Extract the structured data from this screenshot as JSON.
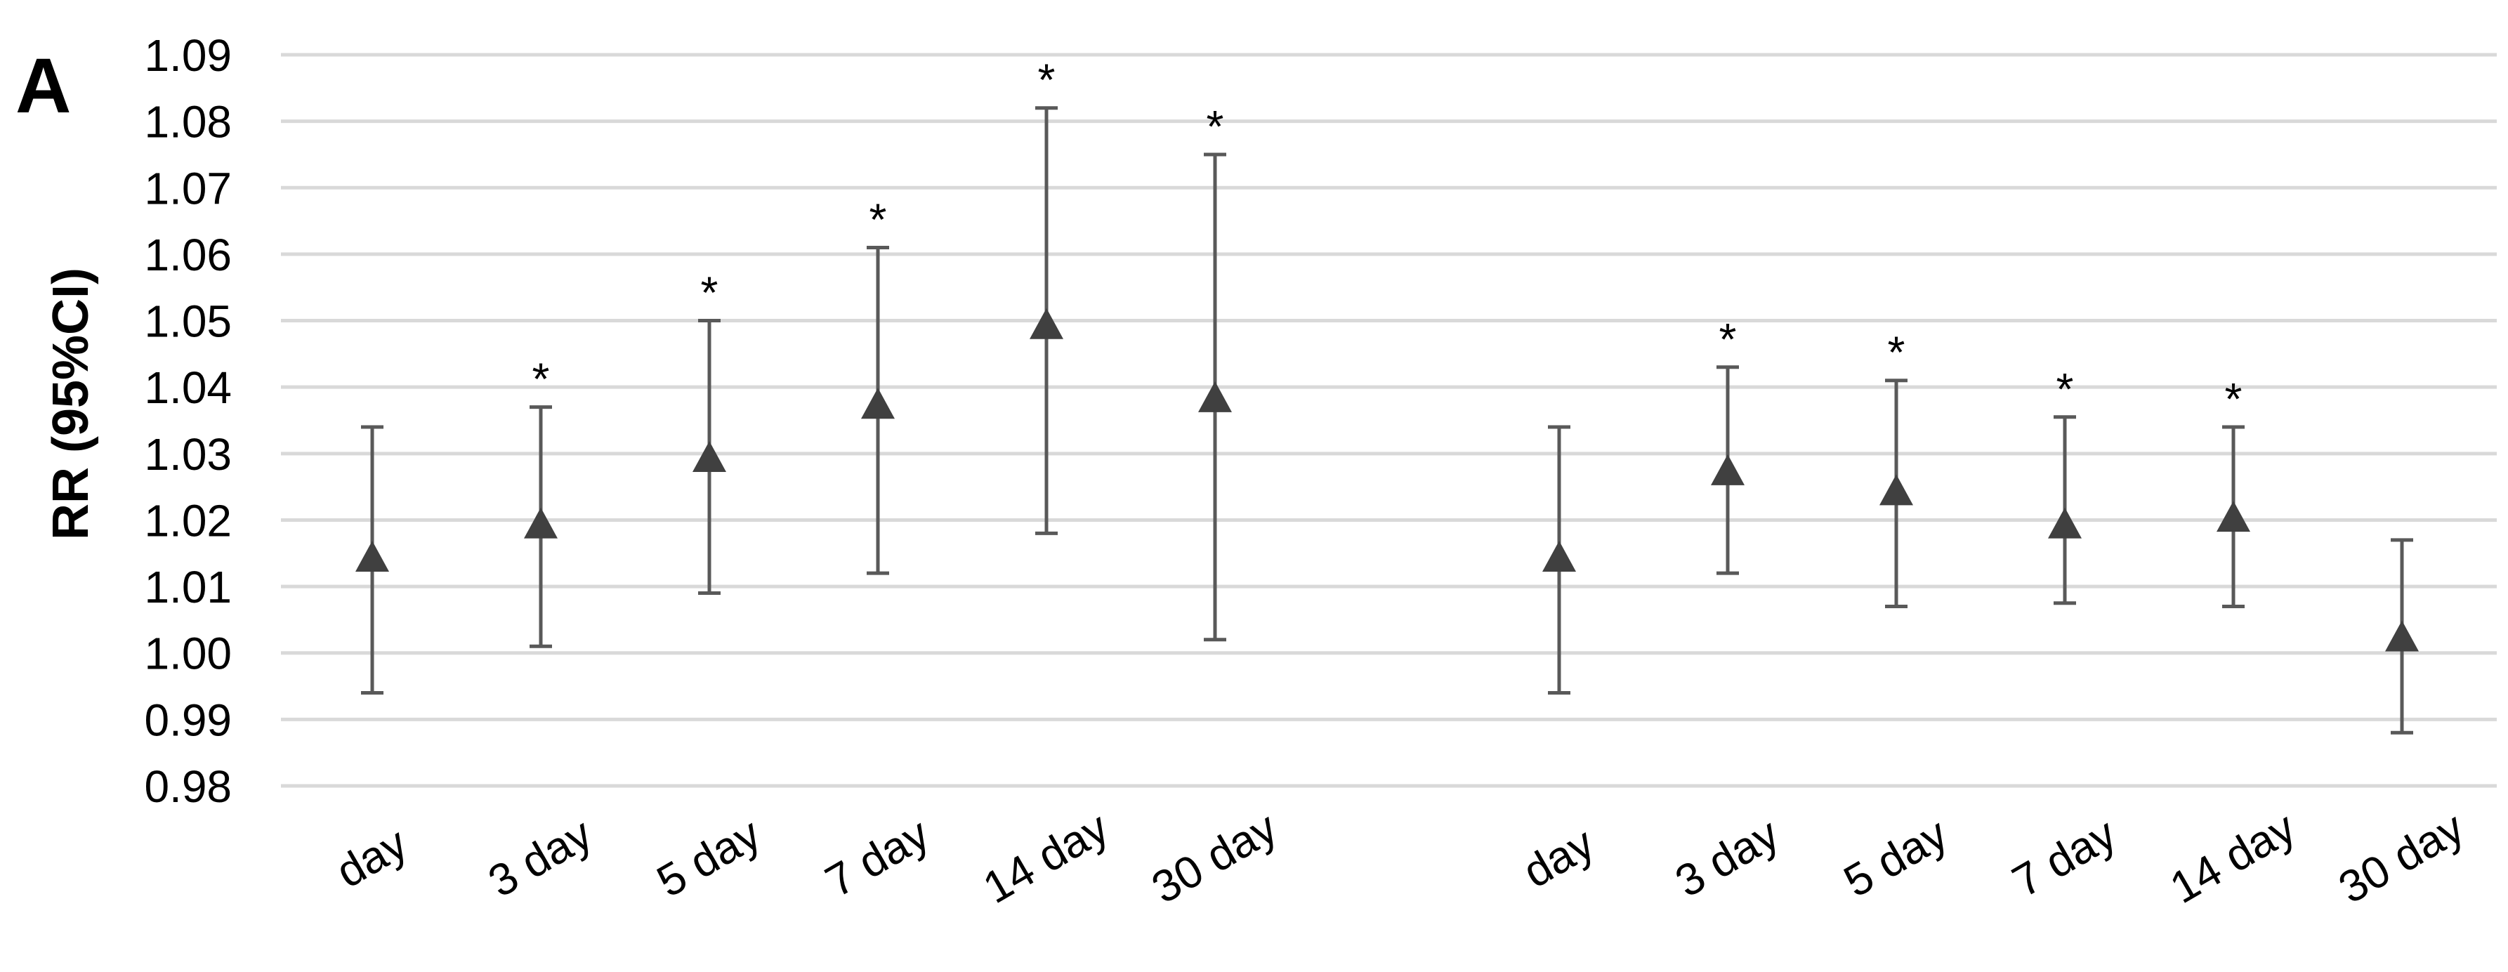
{
  "panel_label": "A",
  "colors": {
    "grid": "#d9d9d9",
    "marker": "#404040",
    "errorbar": "#595959"
  },
  "chart_data": {
    "type": "scatter",
    "marker": "triangle",
    "ylabel": "RR (95%CI)",
    "ylim": [
      0.98,
      1.09
    ],
    "yticks": [
      "1.09",
      "1.08",
      "1.07",
      "1.06",
      "1.05",
      "1.04",
      "1.03",
      "1.02",
      "1.01",
      "1.00",
      "0.99",
      "0.98"
    ],
    "grid": true,
    "groups": [
      {
        "categories": [
          "day",
          "3 day",
          "5 day",
          "7 day",
          "14 day",
          "30 day"
        ],
        "rr": [
          1.014,
          1.019,
          1.029,
          1.037,
          1.049,
          1.038
        ],
        "lower": [
          0.994,
          1.001,
          1.009,
          1.012,
          1.018,
          1.002
        ],
        "upper": [
          1.034,
          1.037,
          1.05,
          1.061,
          1.082,
          1.075
        ],
        "significance": [
          "",
          "*",
          "*",
          "*",
          "*",
          "*"
        ]
      },
      {
        "categories": [
          "day",
          "3 day",
          "5 day",
          "7 day",
          "14 day",
          "30 day"
        ],
        "rr": [
          1.014,
          1.027,
          1.024,
          1.019,
          1.02,
          1.002
        ],
        "lower": [
          0.994,
          1.012,
          1.007,
          1.0075,
          1.007,
          0.988
        ],
        "upper": [
          1.034,
          1.043,
          1.041,
          1.0355,
          1.034,
          1.017
        ],
        "significance": [
          "",
          "*",
          "*",
          "*",
          "*",
          ""
        ]
      }
    ]
  }
}
